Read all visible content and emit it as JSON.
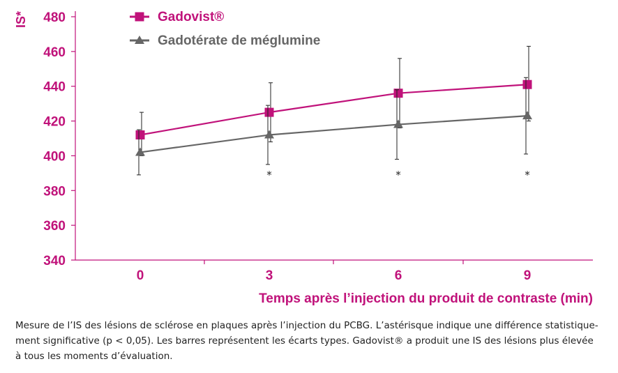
{
  "colors": {
    "gadovist": "#c0127a",
    "comparator": "#666666",
    "axis": "#c0127a",
    "text": "#222222"
  },
  "chart_data": {
    "type": "line",
    "ylabel": "IS*",
    "xlabel": "Temps après l’injection du produit de contraste (min)",
    "x": [
      0,
      3,
      6,
      9
    ],
    "x_tick_labels": [
      "0",
      "3",
      "6",
      "9"
    ],
    "ylim": [
      340,
      480
    ],
    "y_ticks": [
      340,
      360,
      380,
      400,
      420,
      440,
      460,
      480
    ],
    "grid": false,
    "legend_position": "top-left",
    "series": [
      {
        "name": "Gadovist®",
        "marker": "square",
        "color": "#c0127a",
        "values": [
          412,
          425,
          436,
          441
        ],
        "err_low": [
          400,
          408,
          416,
          420
        ],
        "err_high": [
          425,
          442,
          456,
          463
        ]
      },
      {
        "name": "Gadotérate de méglumine",
        "marker": "triangle",
        "color": "#666666",
        "values": [
          402,
          412,
          418,
          423
        ],
        "err_low": [
          389,
          395,
          398,
          401
        ],
        "err_high": [
          415,
          429,
          438,
          445
        ]
      }
    ],
    "significance_marker": "*",
    "significant_x": [
      3,
      6,
      9
    ]
  },
  "caption": "Mesure de l’IS des lésions de sclérose en plaques après l’injection du PCBG. L’astérisque indique une différence statistique-\nment significative (p < 0,05). Les barres représentent les écarts types. Gadovist® a produit une IS des lésions plus élevée\nà tous les moments d’évaluation."
}
